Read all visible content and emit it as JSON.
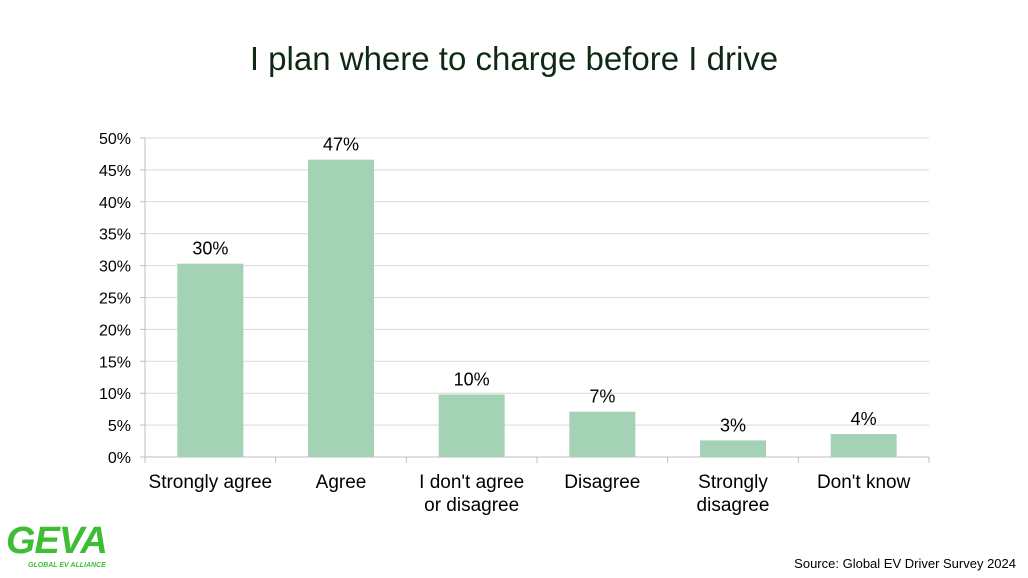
{
  "title": "I plan where to charge before I drive",
  "source": "Source: Global EV Driver Survey 2024",
  "logo": {
    "text": "GEVA",
    "subtitle": "GLOBAL EV ALLIANCE"
  },
  "colors": {
    "bar": "#a3d2b5",
    "grid": "#d9d9d9",
    "axis": "#bfbfbf",
    "logo": "#3dbd33"
  },
  "chart_data": {
    "type": "bar",
    "title": "I plan where to charge before I drive",
    "categories": [
      [
        "Strongly agree"
      ],
      [
        "Agree"
      ],
      [
        "I don't agree",
        "or disagree"
      ],
      [
        "Disagree"
      ],
      [
        "Strongly",
        "disagree"
      ],
      [
        "Don't know"
      ]
    ],
    "values": [
      30.3,
      46.6,
      9.8,
      7.1,
      2.6,
      3.6
    ],
    "data_labels": [
      "30%",
      "47%",
      "10%",
      "7%",
      "3%",
      "4%"
    ],
    "y_ticks": [
      "0%",
      "5%",
      "10%",
      "15%",
      "20%",
      "25%",
      "30%",
      "35%",
      "40%",
      "45%",
      "50%"
    ],
    "ylim": [
      0,
      50
    ],
    "grid": true,
    "legend": "none"
  }
}
